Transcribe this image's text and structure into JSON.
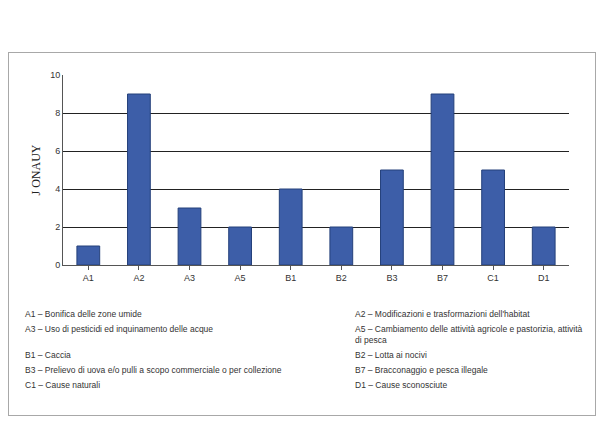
{
  "chart_data": {
    "type": "bar",
    "categories": [
      "A1",
      "A2",
      "A3",
      "A5",
      "B1",
      "B2",
      "B3",
      "B7",
      "C1",
      "D1"
    ],
    "values": [
      1,
      9,
      3,
      2,
      4,
      2,
      5,
      9,
      5,
      2
    ],
    "color": "#3d5ea8",
    "ylim": [
      0,
      10
    ],
    "yticks": [
      0,
      2,
      4,
      6,
      8,
      10
    ],
    "grid": true,
    "ylabel": "J ONAUY",
    "annotations": [
      "A1 – Bonifica delle zone umide",
      "A2 – Modificazioni e trasformazioni dell'habitat",
      "A3 – Uso di pesticidi ed inquinamento delle acque",
      "A5 – Cambiamento delle attività agricole e pastorizia, attività di pesca",
      "B1 – Caccia",
      "B2 – Lotta ai nocivi",
      "B3 – Prelievo di uova e/o pulli a scopo commerciale o  per collezione",
      "B7 – Bracconaggio e pesca illegale",
      "C1 – Cause naturali",
      "D1 – Cause sconosciute"
    ]
  }
}
